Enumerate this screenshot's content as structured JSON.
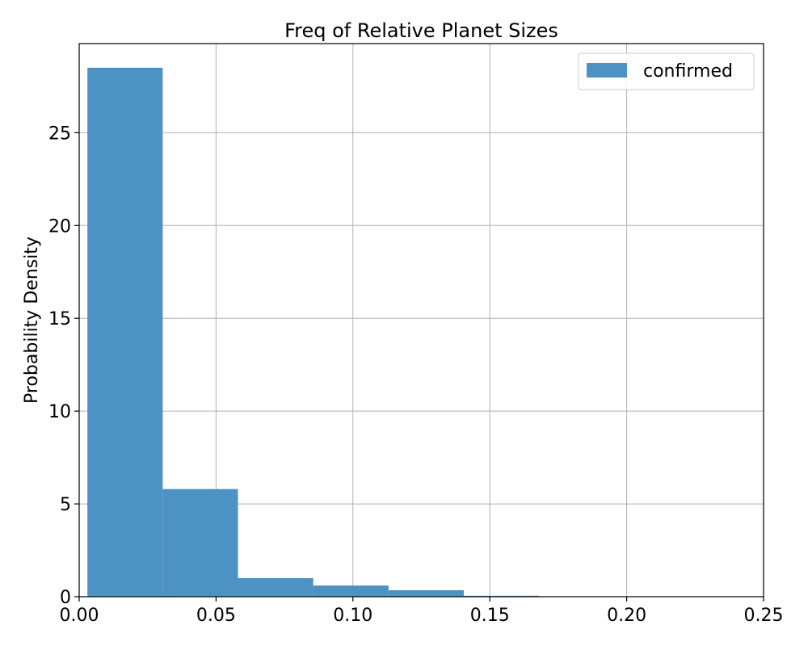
{
  "chart_data": {
    "type": "bar",
    "title": "Freq of Relative Planet Sizes",
    "xlabel": "",
    "ylabel": "Probability Density",
    "xlim": [
      0.0,
      0.25
    ],
    "ylim": [
      0,
      29.8
    ],
    "grid": true,
    "legend_position": "top-right",
    "x_ticks": [
      0.0,
      0.05,
      0.1,
      0.15,
      0.2,
      0.25
    ],
    "x_tick_labels": [
      "0.00",
      "0.05",
      "0.10",
      "0.15",
      "0.20",
      "0.25"
    ],
    "y_ticks": [
      0,
      5,
      10,
      15,
      20,
      25
    ],
    "y_tick_labels": [
      "0",
      "5",
      "10",
      "15",
      "20",
      "25"
    ],
    "series": [
      {
        "name": "confirmed",
        "color": "#4c92c3",
        "bins": [
          {
            "x0": 0.003,
            "x1": 0.0305,
            "value": 28.5
          },
          {
            "x0": 0.0305,
            "x1": 0.058,
            "value": 5.8
          },
          {
            "x0": 0.058,
            "x1": 0.0855,
            "value": 1.0
          },
          {
            "x0": 0.0855,
            "x1": 0.113,
            "value": 0.6
          },
          {
            "x0": 0.113,
            "x1": 0.1405,
            "value": 0.35
          },
          {
            "x0": 0.1405,
            "x1": 0.168,
            "value": 0.05
          }
        ]
      }
    ]
  }
}
